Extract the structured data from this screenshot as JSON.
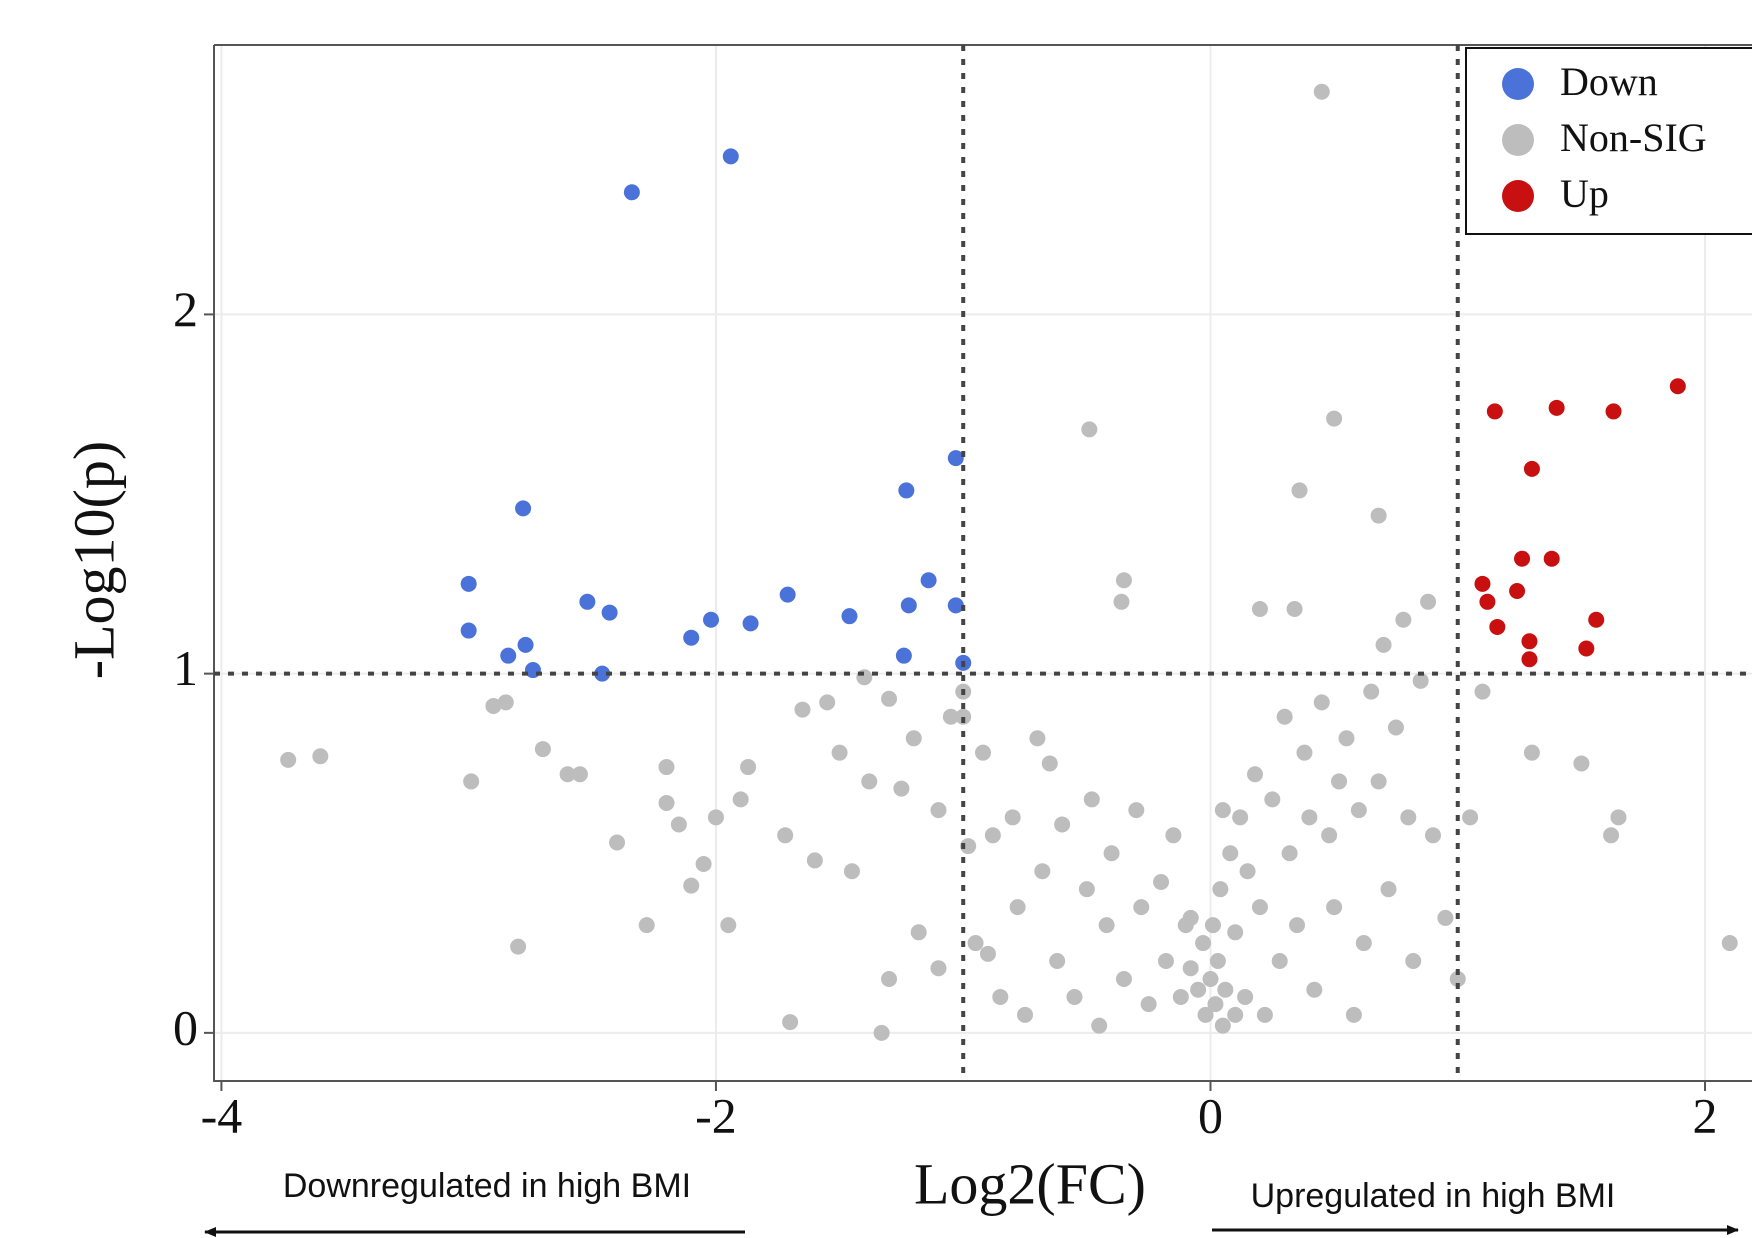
{
  "chart_data": {
    "type": "scatter",
    "x_label": "Log2(FC)",
    "y_label": "-Log10(p)",
    "annotations": [
      "Downregulated in high BMI",
      "Upregulated in high BMI"
    ],
    "xlim": [
      -4.03,
      2.19
    ],
    "ylim": [
      -0.134,
      2.75
    ],
    "xticks": [
      -4,
      -2,
      0,
      2
    ],
    "yticks": [
      0,
      1,
      2
    ],
    "grid": true,
    "legend": "top-right",
    "thresholds": {
      "x": [
        -1,
        1
      ],
      "y": 1
    },
    "series": [
      {
        "name": "Down",
        "color": "#4a72d8",
        "x": [
          -2.34,
          -1.94,
          -2.78,
          -3.0,
          -3.0,
          -2.52,
          -2.43,
          -2.84,
          -2.77,
          -2.74,
          -2.46,
          -2.1,
          -2.02,
          -1.86,
          -1.71,
          -1.46,
          -1.23,
          -1.24,
          -1.22,
          -1.14,
          -1.03,
          -1.03,
          -1.0
        ],
        "values": [
          2.34,
          2.44,
          1.46,
          1.25,
          1.12,
          1.2,
          1.17,
          1.05,
          1.08,
          1.01,
          1.0,
          1.1,
          1.15,
          1.14,
          1.22,
          1.16,
          1.51,
          1.05,
          1.19,
          1.26,
          1.6,
          1.19,
          1.03
        ]
      },
      {
        "name": "Non-SIG",
        "color": "#bdbdbd",
        "x": [
          0.45,
          -0.49,
          0.5,
          0.36,
          0.68,
          -0.35,
          -0.36,
          0.2,
          0.34,
          -3.73,
          -3.6,
          -2.99,
          -2.85,
          -2.9,
          -2.7,
          -2.6,
          -2.55,
          -2.4,
          -2.28,
          -2.2,
          -2.2,
          -2.15,
          -2.1,
          -2.05,
          -2.0,
          -1.95,
          -1.9,
          -1.87,
          -2.8,
          -1.72,
          -1.7,
          -1.65,
          -1.6,
          -1.55,
          -1.5,
          -1.45,
          -1.4,
          -1.38,
          -1.3,
          -1.3,
          -1.33,
          -1.25,
          -1.2,
          -1.18,
          -1.1,
          -1.1,
          -1.05,
          -1.0,
          -0.98,
          -0.95,
          -0.92,
          -0.9,
          -0.88,
          -0.85,
          -0.8,
          -0.78,
          -0.75,
          -0.7,
          -0.68,
          -0.65,
          -0.62,
          -0.6,
          -0.55,
          -0.5,
          -0.48,
          -0.45,
          -0.42,
          -0.4,
          -0.35,
          -0.3,
          -0.28,
          -0.25,
          -0.2,
          -0.18,
          -0.15,
          -0.12,
          -0.1,
          -0.08,
          -0.05,
          -0.03,
          -0.02,
          0.0,
          0.01,
          0.02,
          0.03,
          0.04,
          0.05,
          0.06,
          0.08,
          0.1,
          0.12,
          0.14,
          0.15,
          0.18,
          0.2,
          0.22,
          0.25,
          0.28,
          0.3,
          0.32,
          0.35,
          0.38,
          0.4,
          0.42,
          0.45,
          0.48,
          0.5,
          0.52,
          0.55,
          0.58,
          0.6,
          0.62,
          0.65,
          0.68,
          0.7,
          0.72,
          0.75,
          0.78,
          0.8,
          0.82,
          0.85,
          0.88,
          0.9,
          0.95,
          1.0,
          1.05,
          1.1,
          1.3,
          1.5,
          1.65,
          1.62,
          2.1,
          -1.0,
          0.05,
          0.1,
          -0.08
        ],
        "values": [
          2.62,
          1.68,
          1.71,
          1.51,
          1.44,
          1.26,
          1.2,
          1.18,
          1.18,
          0.76,
          0.77,
          0.7,
          0.92,
          0.91,
          0.79,
          0.72,
          0.72,
          0.53,
          0.3,
          0.74,
          0.64,
          0.58,
          0.41,
          0.47,
          0.6,
          0.3,
          0.65,
          0.74,
          0.24,
          0.55,
          0.03,
          0.9,
          0.48,
          0.92,
          0.78,
          0.45,
          0.99,
          0.7,
          0.93,
          0.15,
          0.0,
          0.68,
          0.82,
          0.28,
          0.62,
          0.18,
          0.88,
          0.95,
          0.52,
          0.25,
          0.78,
          0.22,
          0.55,
          0.1,
          0.6,
          0.35,
          0.05,
          0.82,
          0.45,
          0.75,
          0.2,
          0.58,
          0.1,
          0.4,
          0.65,
          0.02,
          0.3,
          0.5,
          0.15,
          0.62,
          0.35,
          0.08,
          0.42,
          0.2,
          0.55,
          0.1,
          0.3,
          0.18,
          0.12,
          0.25,
          0.05,
          0.15,
          0.3,
          0.08,
          0.2,
          0.4,
          0.02,
          0.12,
          0.5,
          0.28,
          0.6,
          0.1,
          0.45,
          0.72,
          0.35,
          0.05,
          0.65,
          0.2,
          0.88,
          0.5,
          0.3,
          0.78,
          0.6,
          0.12,
          0.92,
          0.55,
          0.35,
          0.7,
          0.82,
          0.05,
          0.62,
          0.25,
          0.95,
          0.7,
          1.08,
          0.4,
          0.85,
          1.15,
          0.6,
          0.2,
          0.98,
          1.2,
          0.55,
          0.32,
          0.15,
          0.6,
          0.95,
          0.78,
          0.75,
          0.6,
          0.55,
          0.25,
          0.88,
          0.62,
          0.05,
          0.32
        ]
      },
      {
        "name": "Up",
        "color": "#c81010",
        "x": [
          1.15,
          1.4,
          1.63,
          1.89,
          1.3,
          1.26,
          1.38,
          1.1,
          1.12,
          1.24,
          1.16,
          1.29,
          1.29,
          1.56,
          1.52
        ],
        "values": [
          1.73,
          1.74,
          1.73,
          1.8,
          1.57,
          1.32,
          1.32,
          1.25,
          1.2,
          1.23,
          1.13,
          1.09,
          1.04,
          1.15,
          1.07
        ]
      }
    ]
  }
}
